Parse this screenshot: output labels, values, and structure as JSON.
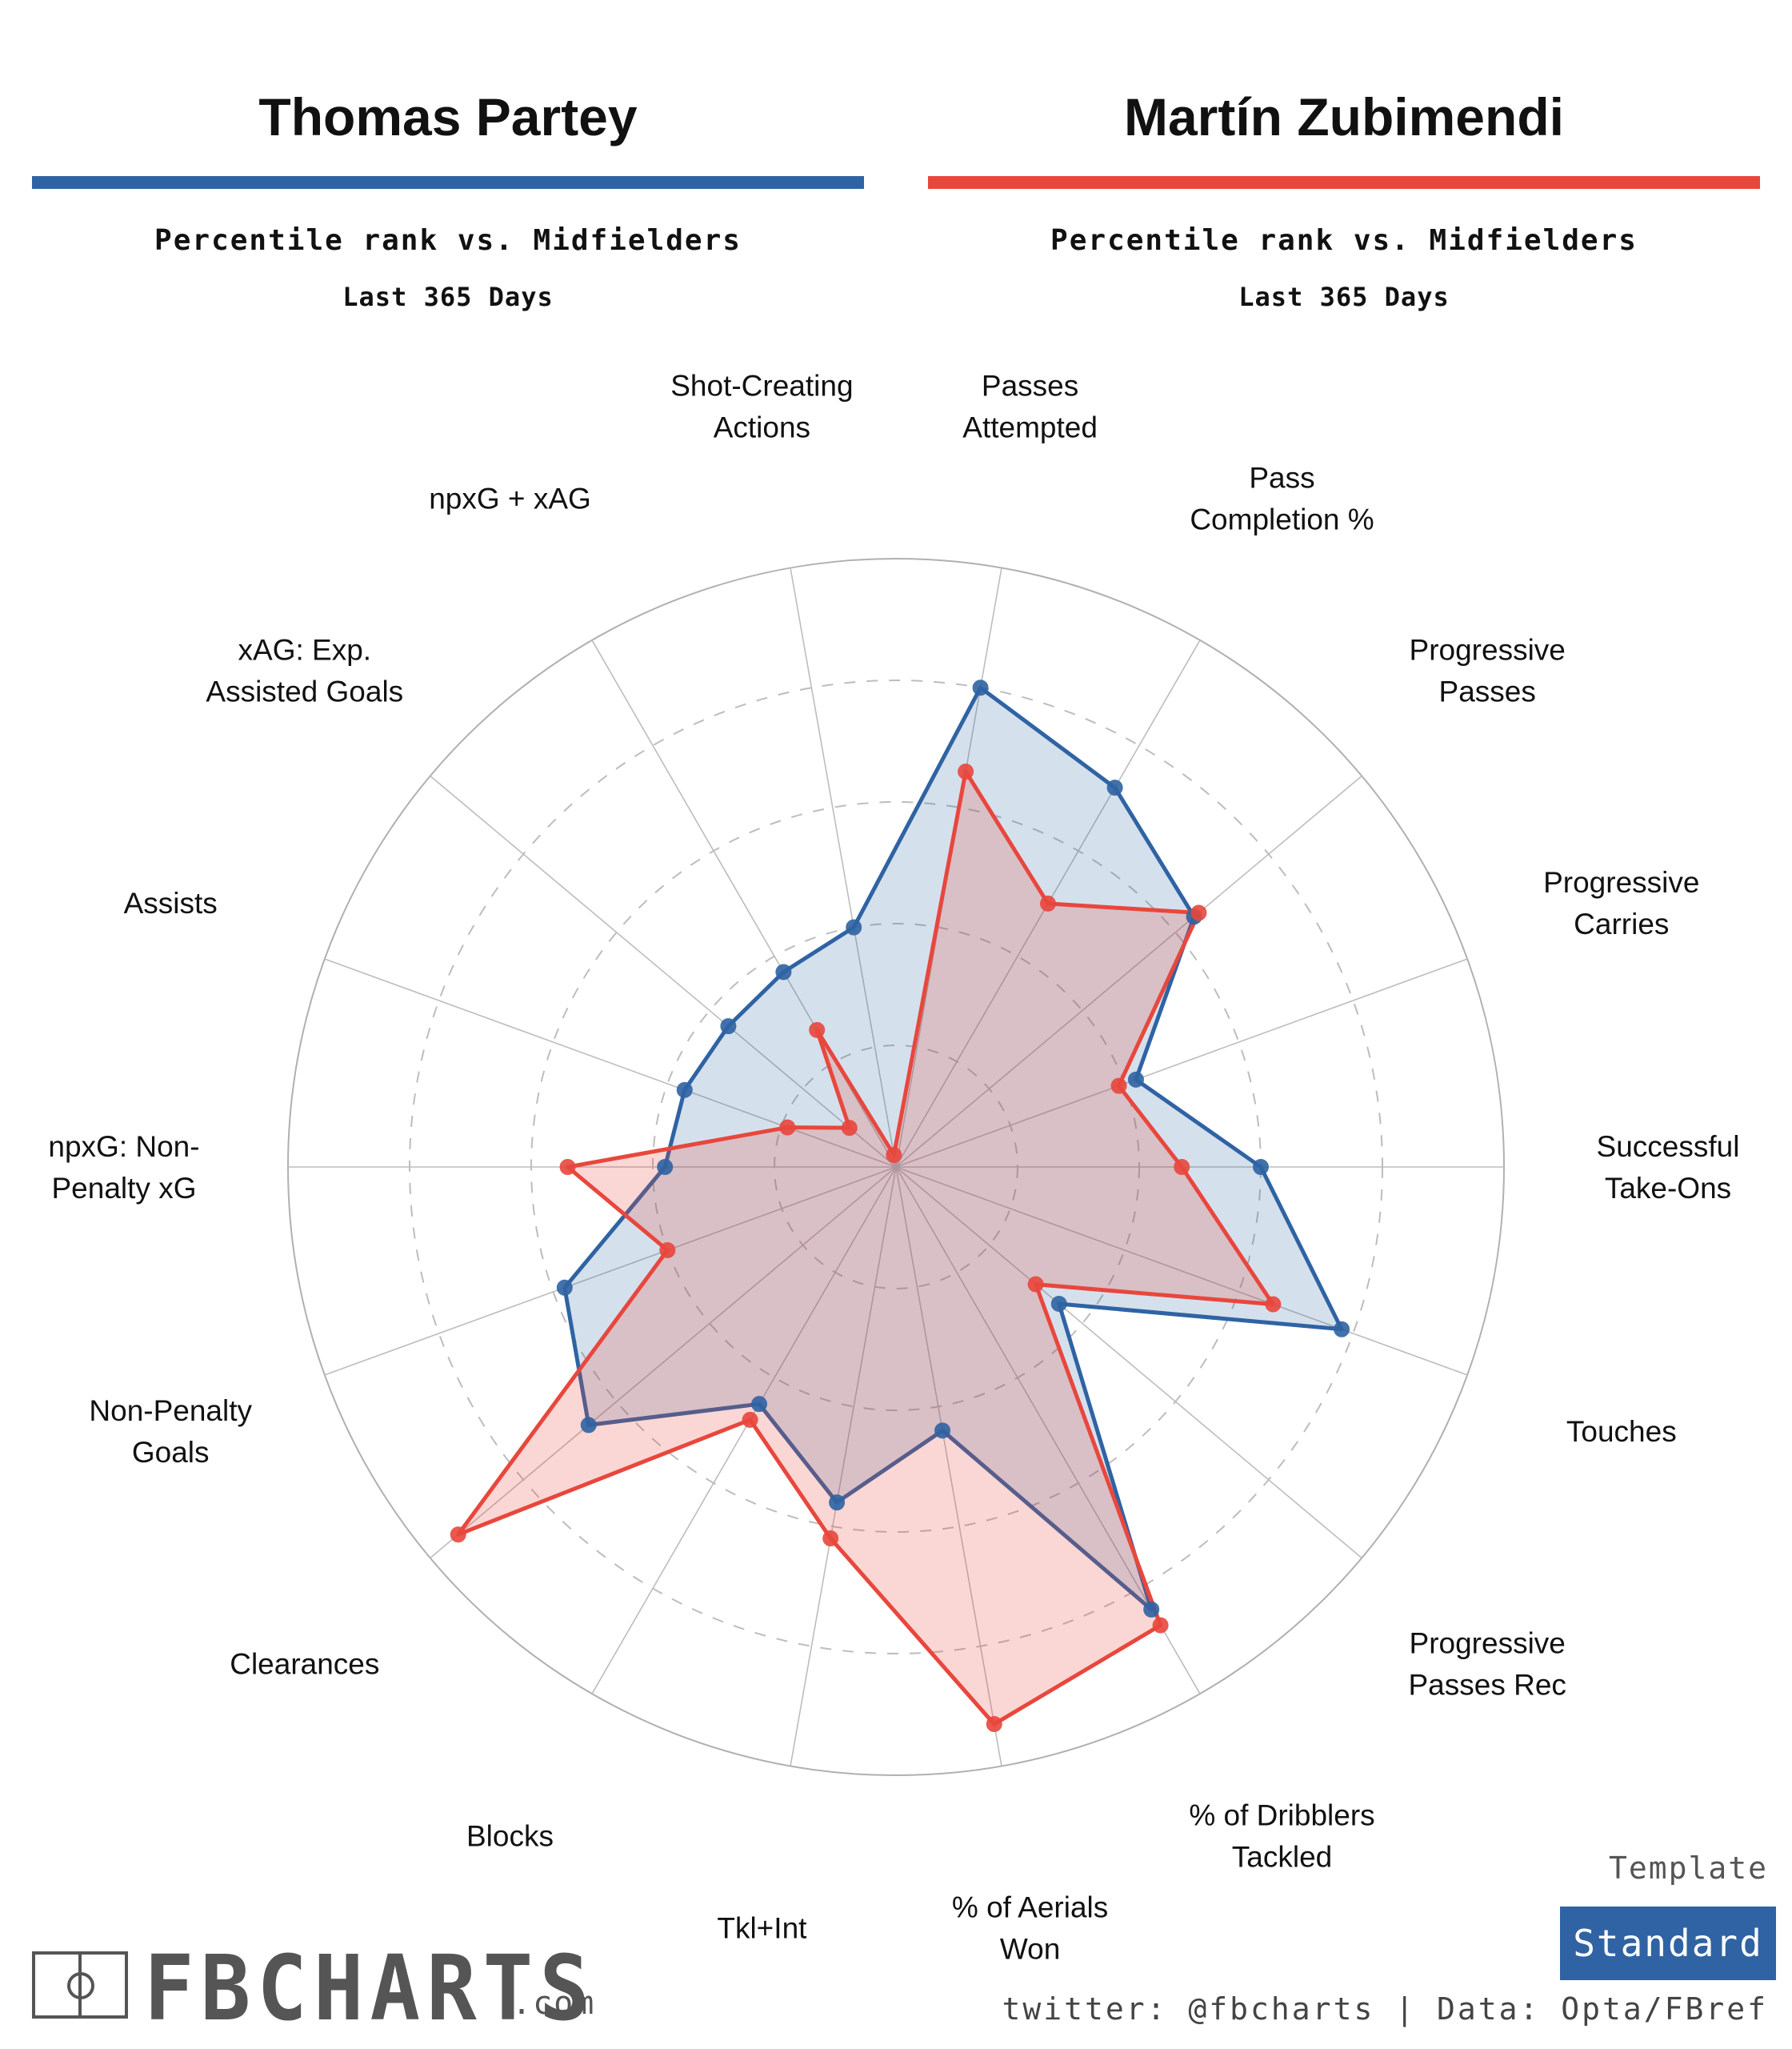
{
  "players": {
    "left": {
      "name": "Thomas Partey",
      "color": "#2f63a3",
      "subtitle": "Percentile rank vs. Midfielders",
      "period": "Last 365 Days"
    },
    "right": {
      "name": "Martín Zubimendi",
      "color": "#e8473d",
      "subtitle": "Percentile rank vs. Midfielders",
      "period": "Last 365 Days"
    }
  },
  "chart_data": {
    "type": "radar",
    "scale": [
      0,
      100
    ],
    "grid": "dashed rings",
    "categories": [
      "Passes\nAttempted",
      "Pass\nCompletion %",
      "Progressive\nPasses",
      "Progressive\nCarries",
      "Successful\nTake-Ons",
      "Touches",
      "Progressive\nPasses Rec",
      "% of Dribblers\nTackled",
      "% of Aerials\nWon",
      "Tkl+Int",
      "Blocks",
      "Clearances",
      "Non-Penalty\nGoals",
      "npxG: Non-\nPenalty xG",
      "Assists",
      "xAG: Exp.\nAssisted Goals",
      "npxG + xAG",
      "Shot-Creating\nActions"
    ],
    "series": [
      {
        "name": "Thomas Partey",
        "color": "#2f63a3",
        "values": [
          80,
          72,
          64,
          42,
          60,
          78,
          35,
          84,
          44,
          56,
          45,
          66,
          58,
          38,
          37,
          36,
          37,
          40
        ]
      },
      {
        "name": "Martín Zubimendi",
        "color": "#e8473d",
        "values": [
          66,
          50,
          65,
          39,
          47,
          66,
          30,
          87,
          93,
          62,
          48,
          94,
          40,
          54,
          19,
          10,
          26,
          2
        ]
      }
    ]
  },
  "footer": {
    "template_label": "Template",
    "template_value": "Standard",
    "credit": "twitter: @fbcharts | Data: Opta/FBref",
    "logo_text": "FBCHARTS",
    "logo_suffix": ".com"
  }
}
